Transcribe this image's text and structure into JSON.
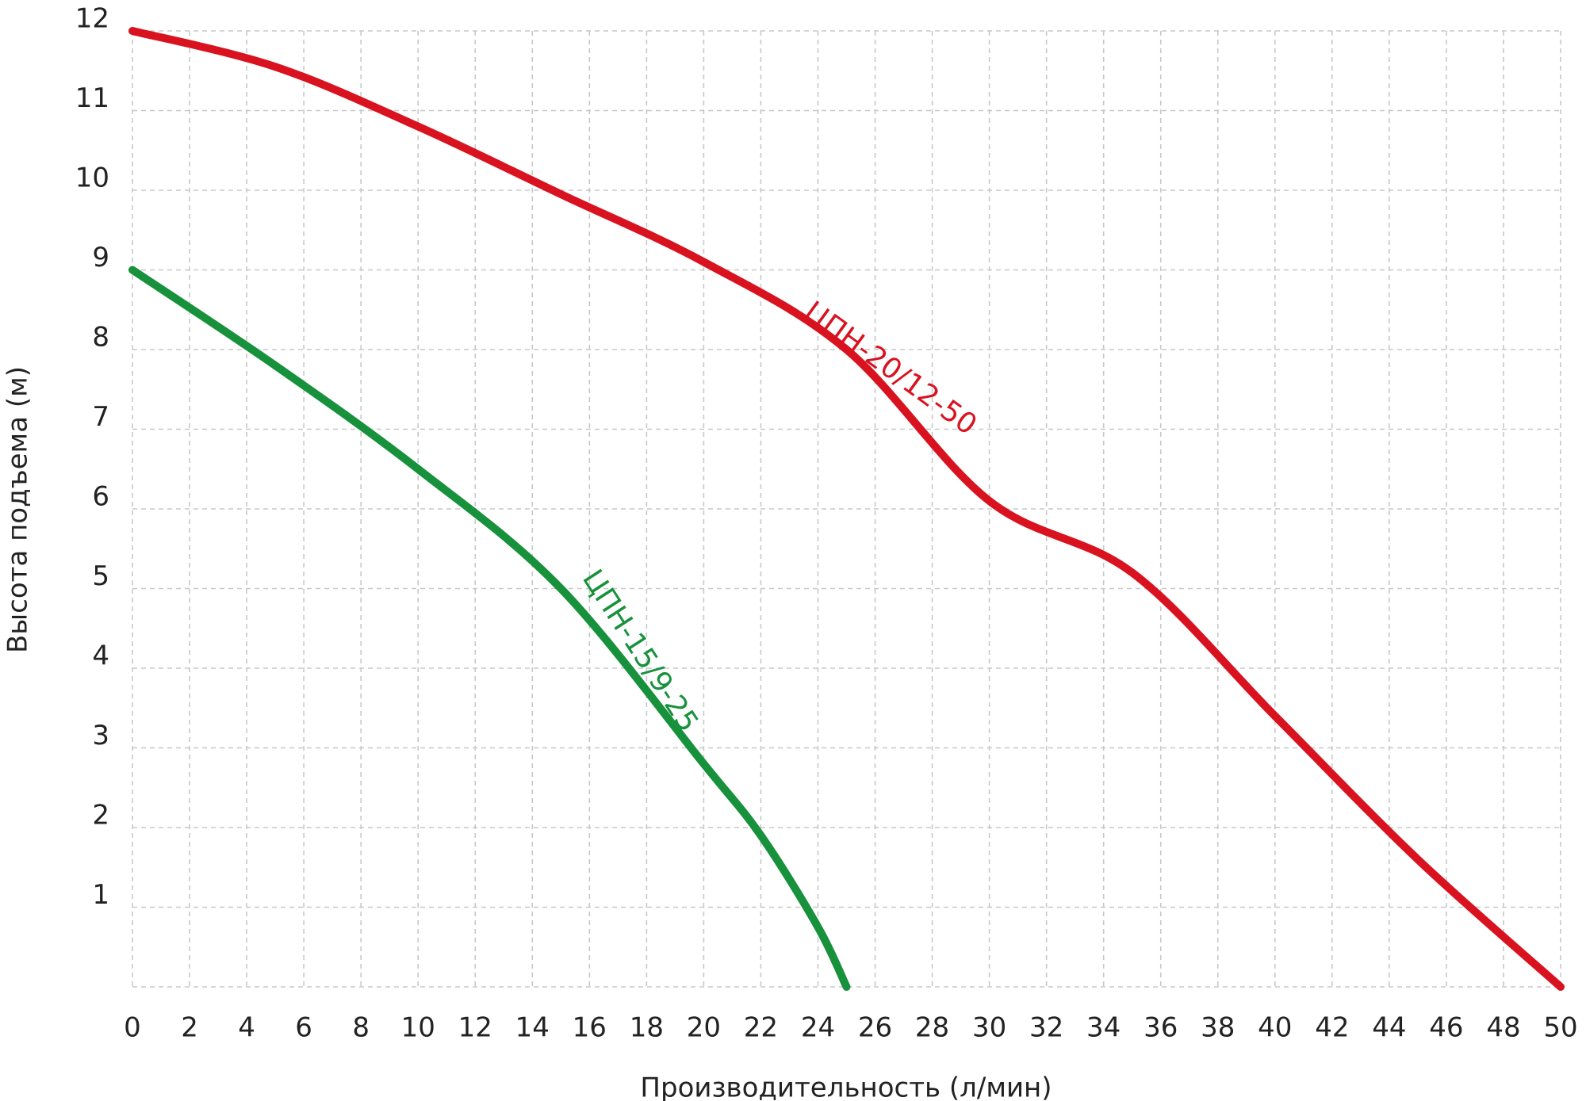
{
  "chart_data": {
    "type": "line",
    "x_label": "Производительность (л/мин)",
    "y_label": "Высота подъема (м)",
    "xlim": [
      0,
      50
    ],
    "ylim": [
      0,
      12
    ],
    "xticks": [
      0,
      2,
      4,
      6,
      8,
      10,
      12,
      14,
      16,
      18,
      20,
      22,
      24,
      26,
      28,
      30,
      32,
      34,
      36,
      38,
      40,
      42,
      44,
      46,
      48,
      50
    ],
    "yticks": [
      1,
      2,
      3,
      4,
      5,
      6,
      7,
      8,
      9,
      10,
      11,
      12
    ],
    "grid": true,
    "series": [
      {
        "name": "ЦПН-20/12-50",
        "color": "#d9121f",
        "x": [
          0,
          5,
          10,
          15,
          20,
          25,
          30,
          35,
          40,
          45,
          50
        ],
        "values": [
          12,
          11.55,
          10.8,
          9.95,
          9.1,
          8.0,
          6.1,
          5.2,
          3.4,
          1.6,
          0
        ]
      },
      {
        "name": "ЦПН-15/9-25",
        "color": "#17913b",
        "x": [
          0,
          5,
          10,
          15,
          20,
          22,
          24,
          25
        ],
        "values": [
          9,
          7.8,
          6.5,
          5.0,
          2.8,
          1.9,
          0.75,
          0
        ]
      }
    ]
  }
}
